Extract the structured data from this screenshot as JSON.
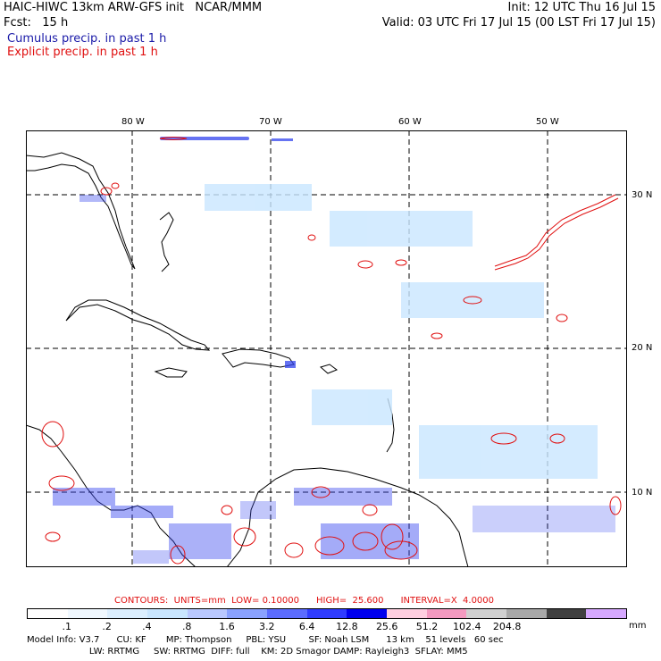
{
  "header": {
    "model_line": "HAIC-HIWC 13km ARW-GFS init   NCAR/MMM",
    "init_line": "Init: 12 UTC Thu 16 Jul 15",
    "fcst_label": "Fcst:   15 h",
    "valid_line": "Valid: 03 UTC Fri 17 Jul 15 (00 LST Fri 17 Jul 15)",
    "cumulus_label": "Cumulus precip. in past 1 h",
    "explicit_label": "Explicit precip. in past 1 h"
  },
  "map": {
    "lon_labels": [
      "80 W",
      "70 W",
      "60 W",
      "50 W"
    ],
    "lat_labels": [
      "30 N",
      "20 N",
      "10 N"
    ],
    "cumulus_color": "#3344ee",
    "explicit_color": "#e01010"
  },
  "contours": {
    "text": "CONTOURS:  UNITS=mm  LOW= 0.10000      HIGH=  25.600      INTERVAL=X  4.0000"
  },
  "colorbar": {
    "colors": [
      "#ffffff",
      "#f0f8ff",
      "#dcefff",
      "#c9e6ff",
      "#b9c8ff",
      "#8aa2ff",
      "#5b6cff",
      "#2f3cff",
      "#0000ee",
      "#ffcfe0",
      "#f49ac0",
      "#d0d0d0",
      "#a8a8a8",
      "#404040",
      "#d6a8ff"
    ],
    "labels": [
      ".1",
      ".2",
      ".4",
      ".8",
      "1.6",
      "3.2",
      "6.4",
      "12.8",
      "25.6",
      "51.2",
      "102.4",
      "204.8"
    ],
    "unit": "mm"
  },
  "footer": {
    "line1": "Model Info: V3.7      CU: KF       MP: Thompson     PBL: YSU        SF: Noah LSM      13 km    51 levels   60 sec",
    "line2": "                      LW: RRTMG     SW: RRTMG  DIFF: full    KM: 2D Smagor DAMP: Rayleigh3  SFLAY: MM5"
  }
}
